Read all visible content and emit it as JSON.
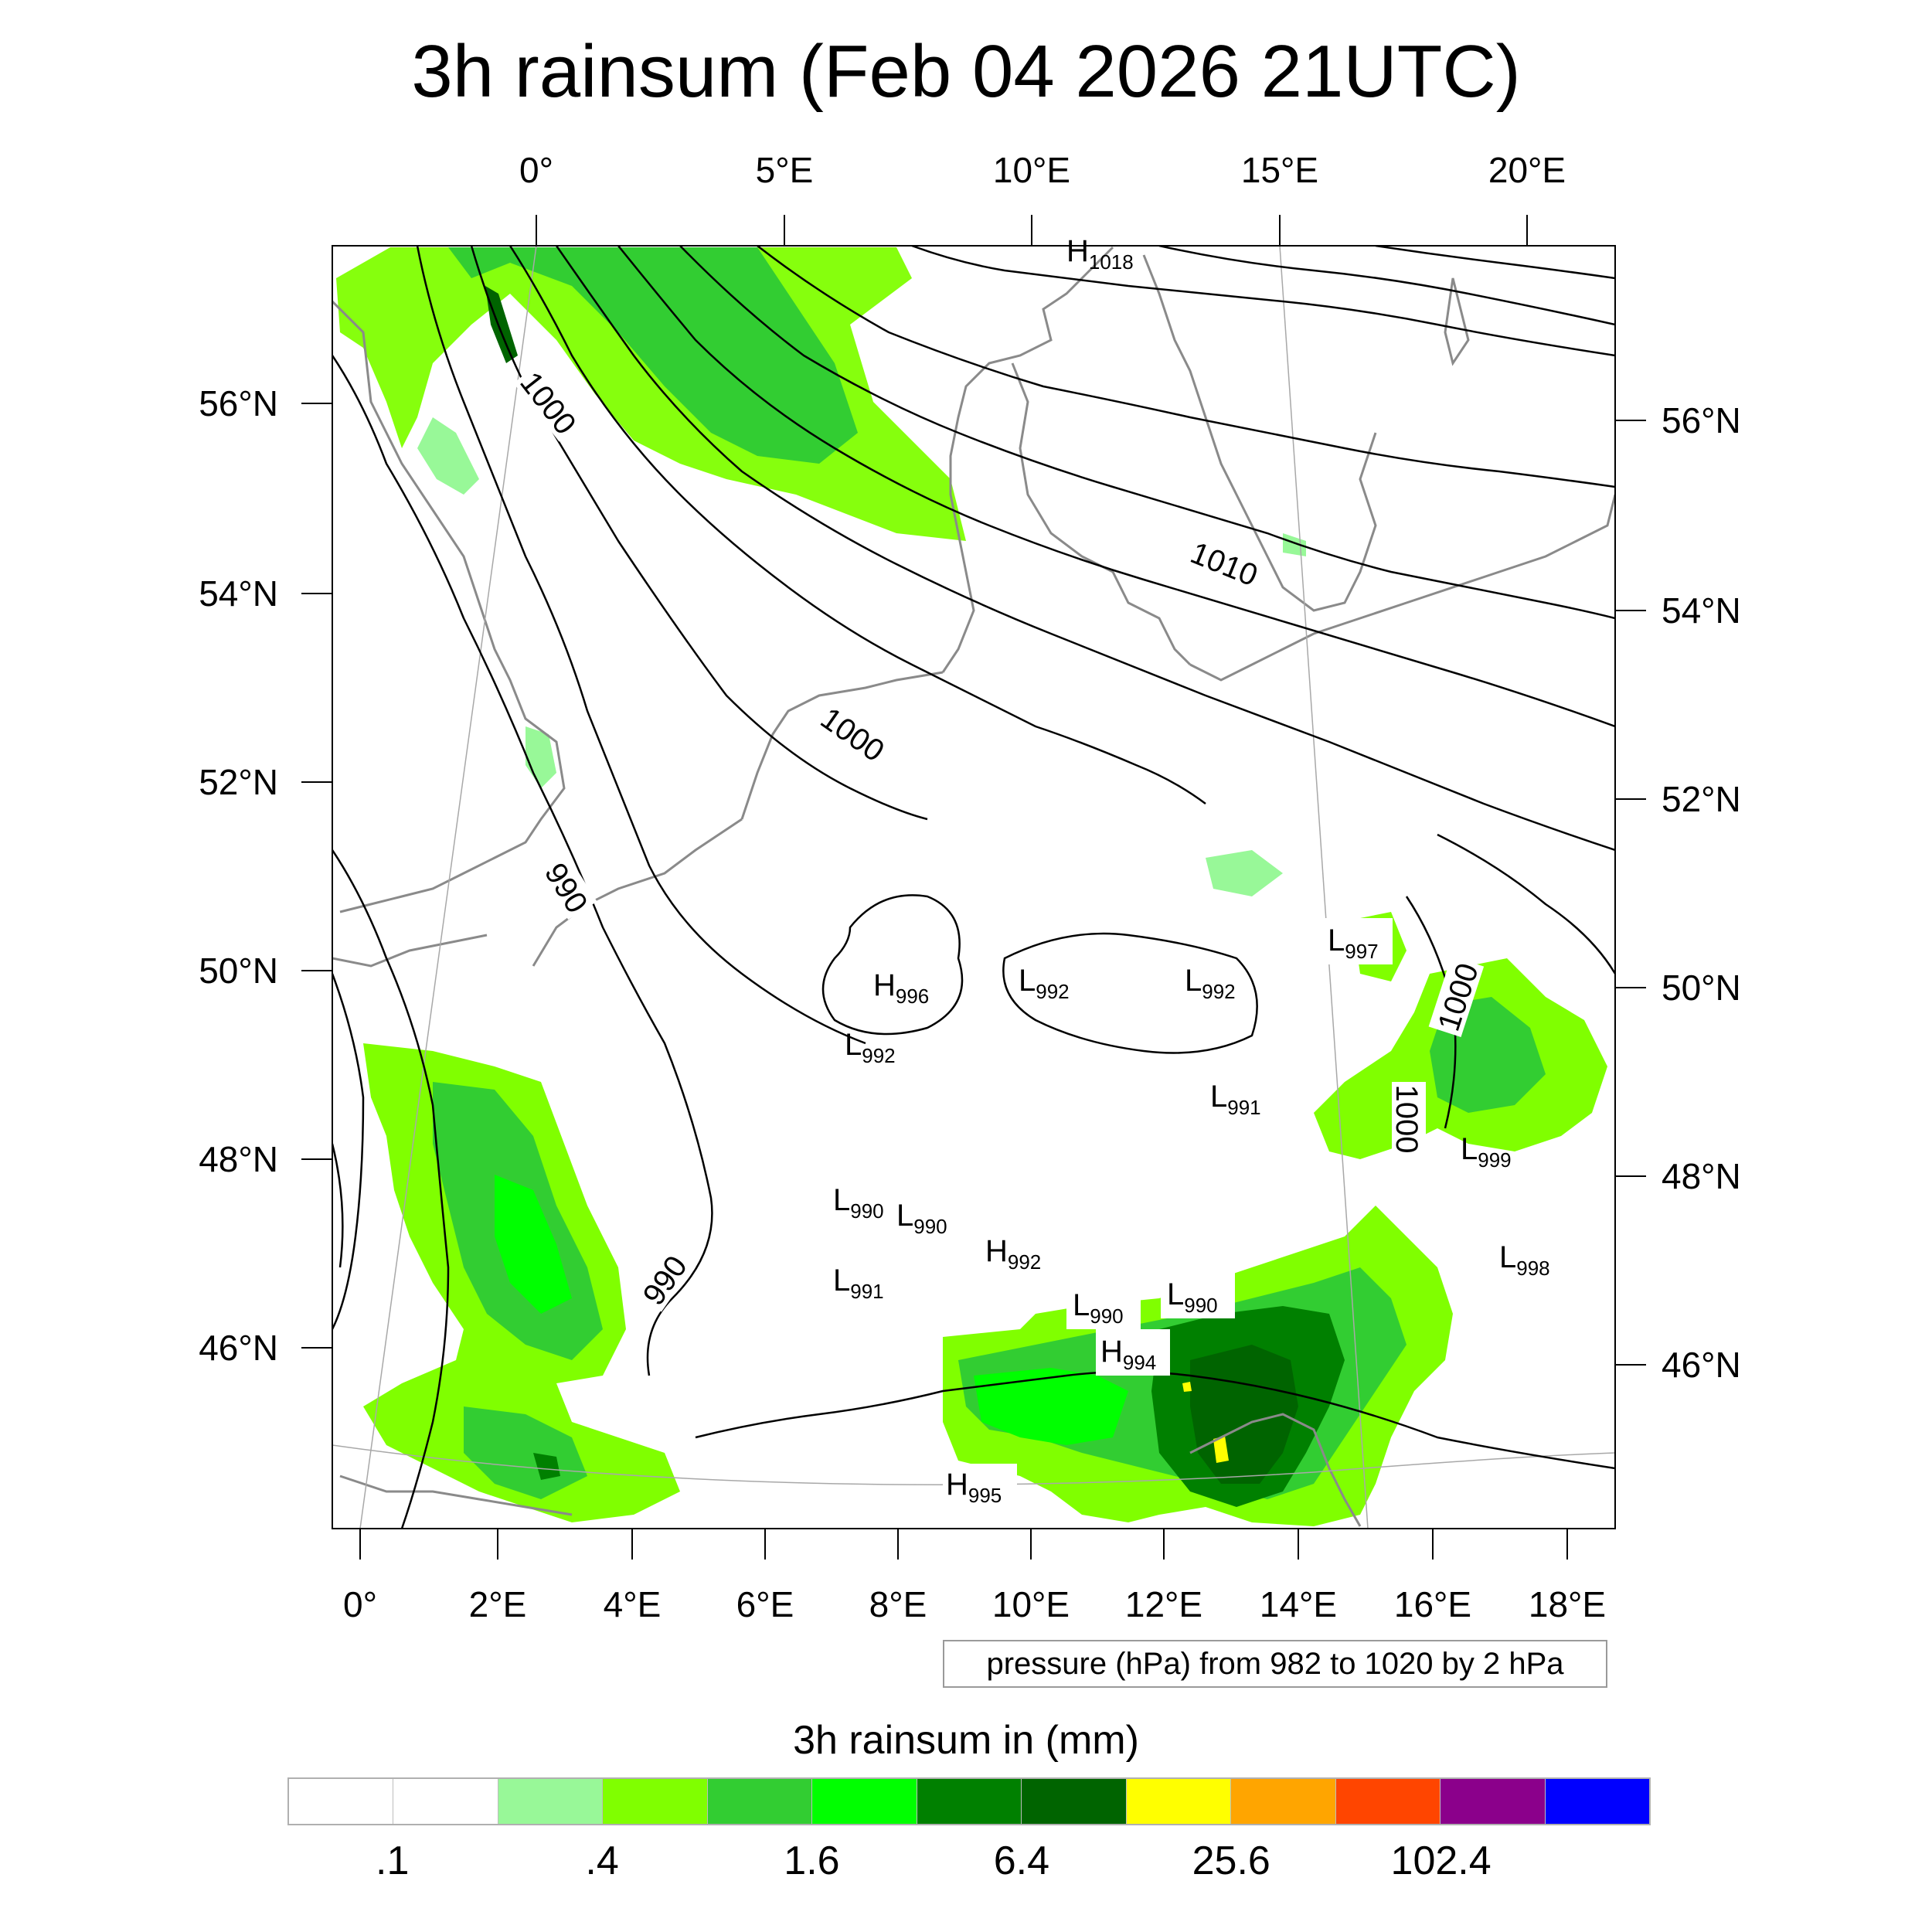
{
  "title": "3h rainsum (Feb 04 2026 21UTC)",
  "map": {
    "top_lon_ticks": [
      "0°",
      "5°E",
      "10°E",
      "15°E",
      "20°E"
    ],
    "bottom_lon_ticks": [
      "0°",
      "2°E",
      "4°E",
      "6°E",
      "8°E",
      "10°E",
      "12°E",
      "14°E",
      "16°E",
      "18°E"
    ],
    "left_lat_ticks": [
      "56°N",
      "54°N",
      "52°N",
      "50°N",
      "48°N",
      "46°N"
    ],
    "right_lat_ticks": [
      "56°N",
      "54°N",
      "52°N",
      "50°N",
      "48°N",
      "46°N"
    ],
    "isobar_labels": [
      "1000",
      "1000",
      "1010",
      "990",
      "990",
      "1000",
      "1000"
    ],
    "pressure_centers": [
      {
        "type": "H",
        "value": "1018"
      },
      {
        "type": "H",
        "value": "996"
      },
      {
        "type": "L",
        "value": "992"
      },
      {
        "type": "L",
        "value": "992"
      },
      {
        "type": "L",
        "value": "992"
      },
      {
        "type": "L",
        "value": "997"
      },
      {
        "type": "L",
        "value": "991"
      },
      {
        "type": "L",
        "value": "999"
      },
      {
        "type": "L",
        "value": "990"
      },
      {
        "type": "L",
        "value": "990"
      },
      {
        "type": "H",
        "value": "992"
      },
      {
        "type": "L",
        "value": "991"
      },
      {
        "type": "L",
        "value": "990"
      },
      {
        "type": "L",
        "value": "990"
      },
      {
        "type": "L",
        "value": "998"
      },
      {
        "type": "H",
        "value": "994"
      },
      {
        "type": "H",
        "value": "995"
      }
    ],
    "colors": {
      "rain_light": "#98f898",
      "rain_lime": "#80ff00",
      "rain_mid": "#32cd32",
      "rain_bright": "#00ff00",
      "rain_dark": "#008000",
      "rain_darkest": "#006400",
      "rain_yellow": "#ffff00",
      "isobar": "#000000",
      "coast": "#8a8a8a"
    }
  },
  "info_box": "pressure (hPa) from 982 to 1020 by 2 hPa",
  "colorbar": {
    "title": "3h rainsum in (mm)",
    "colors": [
      "#ffffff",
      "#ffffff",
      "#98f898",
      "#80ff00",
      "#32cd32",
      "#00ff00",
      "#008000",
      "#006400",
      "#ffff00",
      "#ffa500",
      "#ff4500",
      "#8b008b",
      "#0000ff"
    ],
    "labels": [
      ".1",
      ".4",
      "1.6",
      "6.4",
      "25.6",
      "102.4"
    ]
  }
}
